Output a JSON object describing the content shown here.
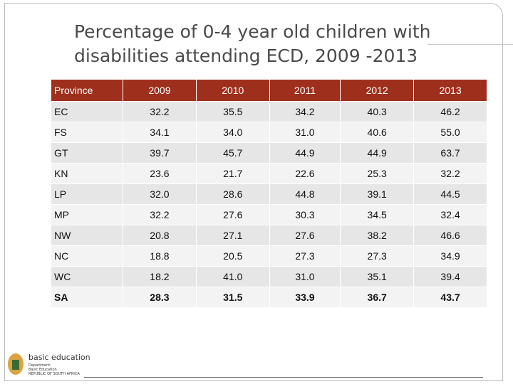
{
  "header": {
    "title_lines": [
      "Percentage of 0-4 year old children with",
      "disabilities attending ECD, 2009 -2013"
    ]
  },
  "table": {
    "columns": [
      "Province",
      "2009",
      "2010",
      "2011",
      "2012",
      "2013"
    ],
    "rows": [
      [
        "EC",
        "32.2",
        "35.5",
        "34.2",
        "40.3",
        "46.2"
      ],
      [
        "FS",
        "34.1",
        "34.0",
        "31.0",
        "40.6",
        "55.0"
      ],
      [
        "GT",
        "39.7",
        "45.7",
        "44.9",
        "44.9",
        "63.7"
      ],
      [
        "KN",
        "23.6",
        "21.7",
        "22.6",
        "25.3",
        "32.2"
      ],
      [
        "LP",
        "32.0",
        "28.6",
        "44.8",
        "39.1",
        "44.5"
      ],
      [
        "MP",
        "32.2",
        "27.6",
        "30.3",
        "34.5",
        "32.4"
      ],
      [
        "NW",
        "20.8",
        "27.1",
        "27.6",
        "38.2",
        "46.6"
      ],
      [
        "NC",
        "18.8",
        "20.5",
        "27.3",
        "27.3",
        "34.9"
      ],
      [
        "WC",
        "18.2",
        "41.0",
        "31.0",
        "35.1",
        "39.4"
      ],
      [
        "SA",
        "28.3",
        "31.5",
        "33.9",
        "36.7",
        "43.7"
      ]
    ]
  },
  "footer": {
    "logo_name": "basic education",
    "department": "Department:",
    "department_name": "Basic Education",
    "country": "REPUBLIC OF SOUTH AFRICA"
  }
}
